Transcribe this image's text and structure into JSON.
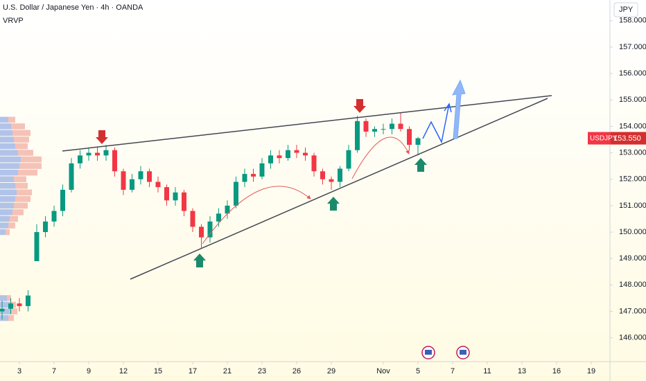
{
  "chart_data": {
    "type": "candlestick",
    "title": "U.S. Dollar / Japanese Yen · 4h · OANDA",
    "indicator": "VRVP",
    "currency": "JPY",
    "symbol_tag": "USDJPY",
    "last_price": {
      "value": 153.55,
      "label": "153.550"
    },
    "up_color": "#089981",
    "down_color": "#f23645",
    "grid": false,
    "xlim": [
      -1.12,
      34.08
    ],
    "ylim": [
      145.1,
      158.78
    ],
    "xticks": [
      {
        "value": 0,
        "label": "3"
      },
      {
        "value": 2,
        "label": "7"
      },
      {
        "value": 4,
        "label": "9"
      },
      {
        "value": 6,
        "label": "12"
      },
      {
        "value": 8,
        "label": "15"
      },
      {
        "value": 10,
        "label": "17"
      },
      {
        "value": 12,
        "label": "21"
      },
      {
        "value": 14,
        "label": "23"
      },
      {
        "value": 16,
        "label": "26"
      },
      {
        "value": 18,
        "label": "29"
      },
      {
        "value": 21,
        "label": "Nov"
      },
      {
        "value": 23,
        "label": "5"
      },
      {
        "value": 25,
        "label": "7"
      },
      {
        "value": 27,
        "label": "11"
      },
      {
        "value": 29,
        "label": "13"
      },
      {
        "value": 31,
        "label": "16"
      },
      {
        "value": 33,
        "label": "19"
      }
    ],
    "yticks": [
      {
        "value": 146,
        "label": "146.000"
      },
      {
        "value": 147,
        "label": "147.000"
      },
      {
        "value": 148,
        "label": "148.000"
      },
      {
        "value": 149,
        "label": "149.000"
      },
      {
        "value": 150,
        "label": "150.000"
      },
      {
        "value": 151,
        "label": "151.000"
      },
      {
        "value": 152,
        "label": "152.000"
      },
      {
        "value": 153,
        "label": "153.000"
      },
      {
        "value": 154,
        "label": "154.000"
      },
      {
        "value": 155,
        "label": "155.000"
      },
      {
        "value": 156,
        "label": "156.000"
      },
      {
        "value": 157,
        "label": "157.000"
      },
      {
        "value": 158,
        "label": "158.000"
      }
    ],
    "x": [
      -1,
      -0.5,
      0,
      0.5,
      1,
      1.5,
      2,
      2.5,
      3,
      3.5,
      4,
      4.5,
      5,
      5.5,
      6,
      6.5,
      7,
      7.5,
      8,
      8.5,
      9,
      9.5,
      10,
      10.5,
      11,
      11.5,
      12,
      12.5,
      13,
      13.5,
      14,
      14.5,
      15,
      15.5,
      16,
      16.5,
      17,
      17.5,
      18,
      18.5,
      19,
      19.5,
      20,
      20.5,
      21,
      21.5,
      22,
      22.5,
      23
    ],
    "open": [
      147.0,
      147.1,
      147.3,
      147.2,
      148.9,
      150.0,
      150.4,
      150.8,
      151.6,
      152.6,
      152.9,
      153.0,
      152.9,
      153.1,
      152.3,
      151.6,
      152.0,
      152.3,
      151.9,
      151.7,
      151.2,
      151.5,
      150.8,
      150.2,
      149.8,
      150.4,
      150.7,
      151.0,
      151.9,
      152.2,
      152.1,
      152.6,
      152.9,
      152.8,
      153.1,
      153.0,
      152.9,
      152.3,
      152.0,
      151.9,
      152.4,
      153.1,
      154.2,
      153.8,
      153.9,
      153.9,
      154.1,
      153.9,
      153.3
    ],
    "high": [
      147.4,
      147.5,
      147.5,
      147.8,
      150.3,
      150.6,
      151.0,
      151.8,
      152.8,
      153.1,
      153.2,
      153.2,
      153.3,
      153.2,
      152.4,
      152.2,
      152.5,
      152.4,
      152.1,
      151.8,
      151.7,
      151.6,
      150.9,
      150.3,
      150.6,
      150.9,
      151.2,
      152.1,
      152.4,
      152.4,
      152.8,
      153.1,
      153.1,
      153.3,
      153.3,
      153.2,
      153.0,
      152.4,
      152.1,
      152.5,
      153.3,
      154.4,
      154.3,
      154.0,
      154.1,
      154.3,
      154.5,
      154.0,
      153.6
    ],
    "low": [
      146.7,
      146.9,
      147.0,
      147.0,
      148.9,
      149.8,
      150.2,
      150.6,
      151.5,
      152.4,
      152.7,
      152.7,
      152.7,
      152.1,
      151.4,
      151.5,
      151.8,
      151.7,
      151.5,
      151.0,
      151.0,
      150.6,
      150.0,
      149.4,
      149.6,
      150.2,
      150.5,
      150.9,
      151.7,
      151.9,
      152.0,
      152.4,
      152.6,
      152.7,
      152.8,
      152.7,
      152.1,
      151.8,
      151.6,
      151.7,
      152.3,
      153.0,
      153.6,
      153.6,
      153.7,
      153.7,
      153.8,
      153.1,
      152.9
    ],
    "close": [
      147.1,
      147.3,
      147.2,
      147.6,
      150.0,
      150.4,
      150.8,
      151.6,
      152.6,
      152.9,
      153.0,
      152.9,
      153.1,
      152.3,
      151.6,
      152.0,
      152.3,
      151.9,
      151.7,
      151.2,
      151.5,
      150.8,
      150.2,
      149.8,
      150.4,
      150.7,
      151.0,
      151.9,
      152.2,
      152.1,
      152.6,
      152.9,
      152.8,
      153.1,
      153.0,
      152.9,
      152.3,
      152.0,
      151.9,
      152.4,
      153.1,
      154.2,
      153.8,
      153.9,
      153.9,
      154.1,
      153.9,
      153.3,
      153.55
    ],
    "volume_profile": {
      "prices": [
        146.75,
        147.0,
        147.25,
        147.5,
        150.0,
        150.25,
        150.5,
        150.75,
        151.0,
        151.25,
        151.5,
        151.75,
        152.0,
        152.25,
        152.5,
        152.75,
        153.0,
        153.25,
        153.5,
        153.75,
        154.0,
        154.25
      ],
      "up": [
        12,
        15,
        14,
        10,
        8,
        12,
        14,
        18,
        20,
        22,
        24,
        22,
        20,
        26,
        28,
        30,
        26,
        22,
        20,
        18,
        16,
        12
      ],
      "down": [
        8,
        10,
        9,
        6,
        6,
        10,
        12,
        16,
        20,
        22,
        22,
        18,
        18,
        28,
        32,
        30,
        22,
        18,
        22,
        26,
        20,
        10
      ],
      "up_color": "#9fb4e6",
      "down_color": "#f3b3a8"
    }
  }
}
